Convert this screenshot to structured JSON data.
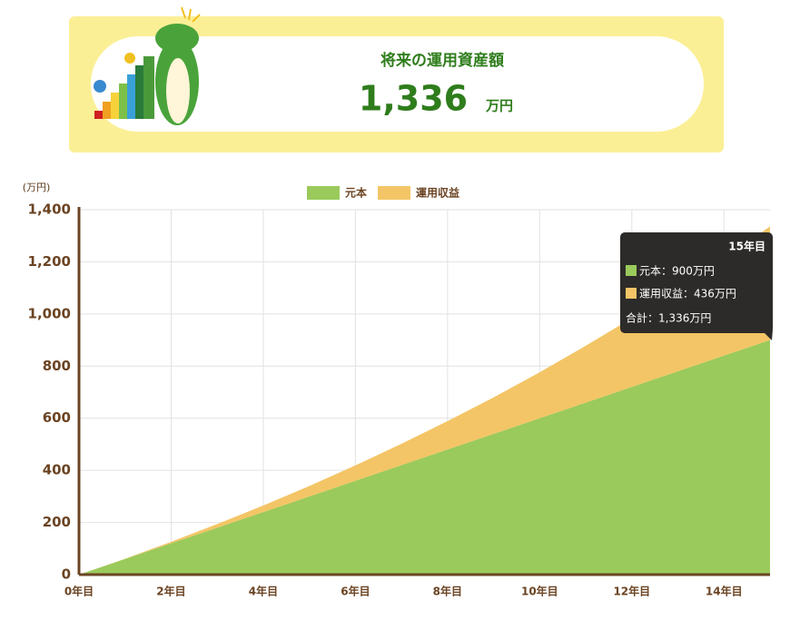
{
  "header": {
    "title": "将来の運用資産額",
    "amount": "1,336",
    "unit": "万円"
  },
  "chart_data": {
    "type": "stacked-area",
    "y_label": "(万円)",
    "x": [
      0,
      1,
      2,
      3,
      4,
      5,
      6,
      7,
      8,
      9,
      10,
      11,
      12,
      13,
      14,
      15
    ],
    "series": [
      {
        "name": "元本",
        "color": "#9aca5b",
        "values": [
          0,
          60,
          120,
          180,
          240,
          300,
          360,
          420,
          480,
          540,
          600,
          660,
          720,
          780,
          840,
          900
        ]
      },
      {
        "name": "運用収益",
        "color": "#f3c566",
        "values": [
          0,
          1,
          6,
          14,
          25,
          40,
          59,
          82,
          109,
          140,
          176,
          218,
          264,
          316,
          373,
          436
        ]
      }
    ],
    "xlim": [
      0,
      15
    ],
    "xticks": [
      {
        "value": 0,
        "label": "0年目"
      },
      {
        "value": 2,
        "label": "2年目"
      },
      {
        "value": 4,
        "label": "4年目"
      },
      {
        "value": 6,
        "label": "6年目"
      },
      {
        "value": 8,
        "label": "8年目"
      },
      {
        "value": 10,
        "label": "10年目"
      },
      {
        "value": 12,
        "label": "12年目"
      },
      {
        "value": 14,
        "label": "14年目"
      }
    ],
    "ylim": [
      0,
      1400
    ],
    "yticks": [
      0,
      200,
      400,
      600,
      800,
      {
        "value": 1000,
        "label": "1,000"
      },
      {
        "value": 1200,
        "label": "1,200"
      },
      {
        "value": 1400,
        "label": "1,400"
      }
    ],
    "grid": true,
    "tooltip": {
      "title": "15年目",
      "lines": [
        "元本：900万円",
        "運用収益：436万円",
        "合計：1,336万円"
      ]
    }
  }
}
